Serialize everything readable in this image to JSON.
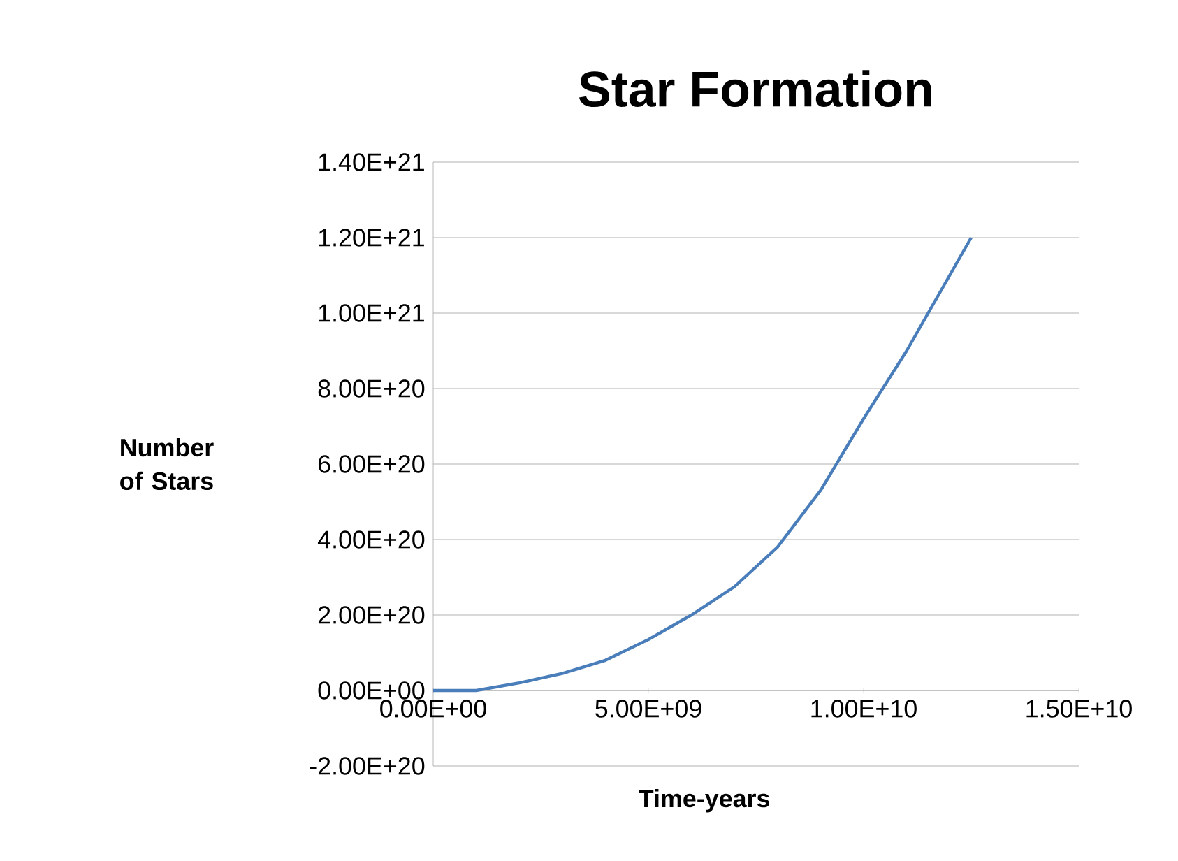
{
  "chart_data": {
    "type": "line",
    "title": "Star Formation",
    "xlabel": "Time-years",
    "ylabel": "Number of Stars",
    "x": [
      0,
      1000000000.0,
      2000000000.0,
      3000000000.0,
      4000000000.0,
      5000000000.0,
      6000000000.0,
      7000000000.0,
      8000000000.0,
      9000000000.0,
      10000000000.0,
      11000000000.0,
      12500000000.0
    ],
    "series": [
      {
        "color": "#4a7ebb",
        "values": [
          0,
          0,
          2e+19,
          4.5e+19,
          8e+19,
          1.35e+20,
          2e+20,
          2.75e+20,
          3.8e+20,
          5.3e+20,
          7.2e+20,
          9e+20,
          1.2e+21
        ]
      }
    ],
    "xlim": [
      0,
      15000000000.0
    ],
    "ylim": [
      -2e+20,
      1.4e+21
    ],
    "xticks": [
      {
        "value": 0,
        "label": "0.00E+00"
      },
      {
        "value": 5000000000.0,
        "label": "5.00E+09"
      },
      {
        "value": 10000000000.0,
        "label": "1.00E+10"
      },
      {
        "value": 15000000000.0,
        "label": "1.50E+10"
      }
    ],
    "yticks": [
      {
        "value": -2e+20,
        "label": "-2.00E+20"
      },
      {
        "value": 0,
        "label": "0.00E+00"
      },
      {
        "value": 2e+20,
        "label": "2.00E+20"
      },
      {
        "value": 4e+20,
        "label": "4.00E+20"
      },
      {
        "value": 6e+20,
        "label": "6.00E+20"
      },
      {
        "value": 8e+20,
        "label": "8.00E+20"
      },
      {
        "value": 1e+21,
        "label": "1.00E+21"
      },
      {
        "value": 1.2e+21,
        "label": "1.20E+21"
      },
      {
        "value": 1.4e+21,
        "label": "1.40E+21"
      }
    ],
    "grid": "y",
    "marker": "none",
    "line_style": "solid"
  }
}
